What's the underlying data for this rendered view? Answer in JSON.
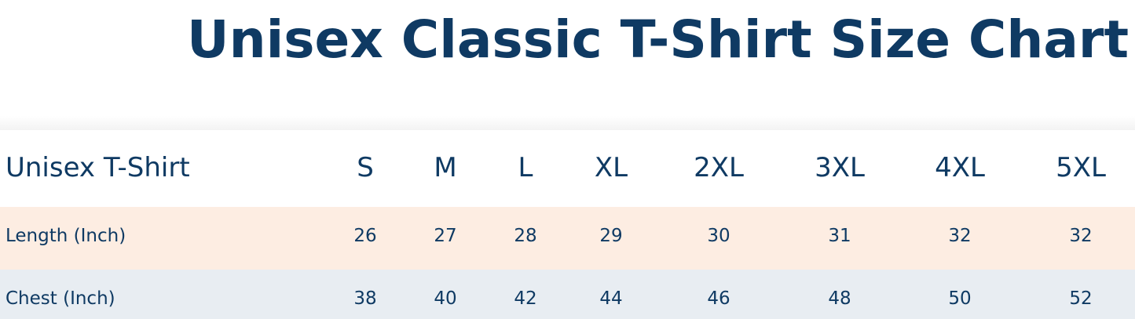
{
  "title": "Unisex Classic T-Shirt Size Chart",
  "colors": {
    "text": "#0f3a63",
    "length_row": "#fdede2",
    "chest_row": "#e8edf2"
  },
  "table": {
    "header_label": "Unisex T-Shirt",
    "sizes": [
      "S",
      "M",
      "L",
      "XL",
      "2XL",
      "3XL",
      "4XL",
      "5XL"
    ],
    "rows": [
      {
        "label": "Length (Inch)",
        "values": [
          "26",
          "27",
          "28",
          "29",
          "30",
          "31",
          "32",
          "32"
        ]
      },
      {
        "label": "Chest (Inch)",
        "values": [
          "38",
          "40",
          "42",
          "44",
          "46",
          "48",
          "50",
          "52"
        ]
      }
    ]
  }
}
